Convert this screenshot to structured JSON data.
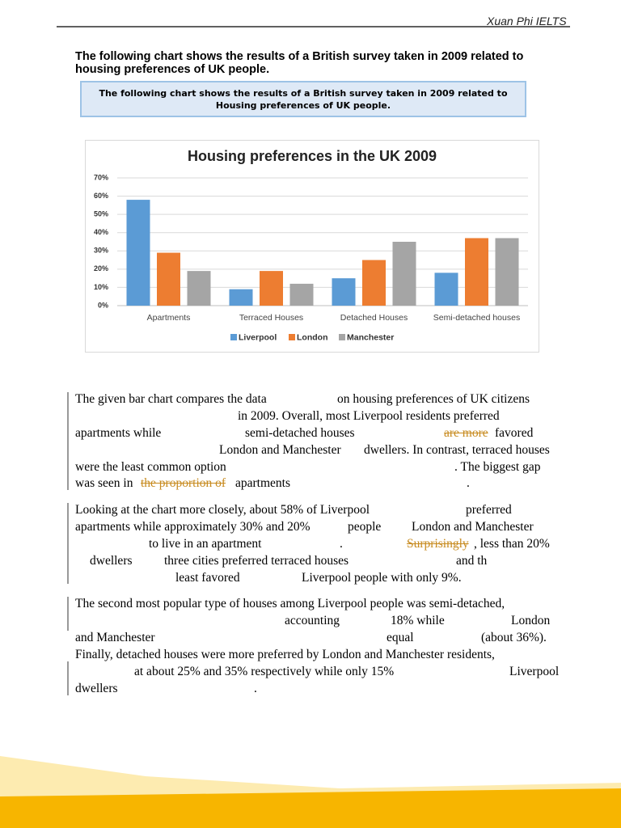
{
  "header": "Xuan Phi IELTS",
  "question": "The following chart shows the results of a British survey taken in 2009 related to housing preferences of UK people.",
  "prompt_box": "The following chart shows the results of a British survey taken in 2009 related to Housing preferences of UK people.",
  "chart_data": {
    "type": "bar",
    "title": "Housing preferences in the UK 2009",
    "categories": [
      "Apartments",
      "Terraced Houses",
      "Detached Houses",
      "Semi-detached houses"
    ],
    "series": [
      {
        "name": "Liverpool",
        "color": "#5b9bd5",
        "values": [
          58,
          9,
          15,
          18
        ]
      },
      {
        "name": "London",
        "color": "#ed7d31",
        "values": [
          29,
          19,
          25,
          37
        ]
      },
      {
        "name": "Manchester",
        "color": "#a5a5a5",
        "values": [
          19,
          12,
          35,
          37
        ]
      }
    ],
    "ylim": [
      0,
      70
    ],
    "yticks": [
      {
        "value": 0,
        "label": "0%"
      },
      {
        "value": 10,
        "label": "10%"
      },
      {
        "value": 20,
        "label": "20%"
      },
      {
        "value": 30,
        "label": "30%"
      },
      {
        "value": 40,
        "label": "40%"
      },
      {
        "value": 50,
        "label": "50%"
      },
      {
        "value": 60,
        "label": "60%"
      },
      {
        "value": 70,
        "label": "70%"
      }
    ],
    "grid": true,
    "legend": "bottom"
  },
  "paragraphs": [
    [
      {
        "text": "The given bar chart compares the data"
      },
      {
        "text": "on housing preferences of UK citizens"
      },
      {
        "text": "in 2009. Overall, most Liverpool residents preferred"
      },
      {
        "text": "apartments while"
      },
      {
        "text": "semi-detached houses"
      },
      {
        "text": "are more",
        "strike": true
      },
      {
        "text": "favored"
      },
      {
        "text": "London and Manchester"
      },
      {
        "text": "dwellers. In contrast, terraced houses"
      },
      {
        "text": "were the least common option"
      },
      {
        "text": ". The biggest gap"
      },
      {
        "text": "was seen in"
      },
      {
        "text": "the proportion of",
        "strike": true
      },
      {
        "text": "apartments"
      },
      {
        "text": "."
      }
    ],
    [
      {
        "text": "Looking at the chart more closely, about 58% of Liverpool"
      },
      {
        "text": "preferred"
      },
      {
        "text": "apartments while approximately 30% and 20%"
      },
      {
        "text": "people"
      },
      {
        "text": "London and Manchester"
      },
      {
        "text": "to live in an apartment"
      },
      {
        "text": "."
      },
      {
        "text": "Surprisingly",
        "strike": true
      },
      {
        "text": ", less than 20%"
      },
      {
        "text": "dwellers"
      },
      {
        "text": "three cities preferred terraced houses"
      },
      {
        "text": "and th"
      },
      {
        "text": "least favored"
      },
      {
        "text": "Liverpool people with only 9%."
      }
    ],
    [
      {
        "text": "The second most popular type of houses among Liverpool people was semi-detached,"
      },
      {
        "text": "accounting"
      },
      {
        "text": "18% while"
      },
      {
        "text": "London"
      },
      {
        "text": "and Manchester"
      },
      {
        "text": "equal"
      },
      {
        "text": "(about 36%)."
      },
      {
        "text": "Finally, detached houses were more preferred by London and Manchester residents,"
      },
      {
        "text": "at about 25% and 35% respectively while only 15%"
      },
      {
        "text": "Liverpool"
      },
      {
        "text": "dwellers"
      },
      {
        "text": "."
      }
    ]
  ]
}
